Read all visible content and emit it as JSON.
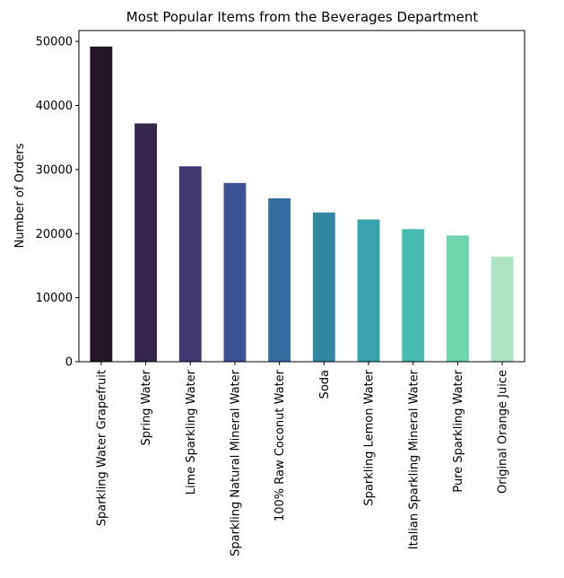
{
  "chart_data": {
    "type": "bar",
    "title": "Most Popular Items from the Beverages Department",
    "xlabel": "",
    "ylabel": "Number of Orders",
    "categories": [
      "Sparkling Water Grapefruit",
      "Spring Water",
      "Lime Sparkling Water",
      "Sparkling Natural Mineral Water",
      "100% Raw Coconut Water",
      "Soda",
      "Sparkling Lemon Water",
      "Italian Sparkling Mineral Water",
      "Pure Sparkling Water",
      "Original Orange Juice"
    ],
    "values": [
      49200,
      37200,
      30500,
      27900,
      25500,
      23300,
      22200,
      20700,
      19700,
      16400
    ],
    "colors": [
      "#231526",
      "#35264c",
      "#403871",
      "#3e5194",
      "#366da0",
      "#3387a2",
      "#38a3ac",
      "#48bcae",
      "#6dd4ad",
      "#ade3c0"
    ],
    "ylim": [
      0,
      51700
    ],
    "yticks": [
      0,
      10000,
      20000,
      30000,
      40000,
      50000
    ],
    "grid": false,
    "legend": "none"
  }
}
